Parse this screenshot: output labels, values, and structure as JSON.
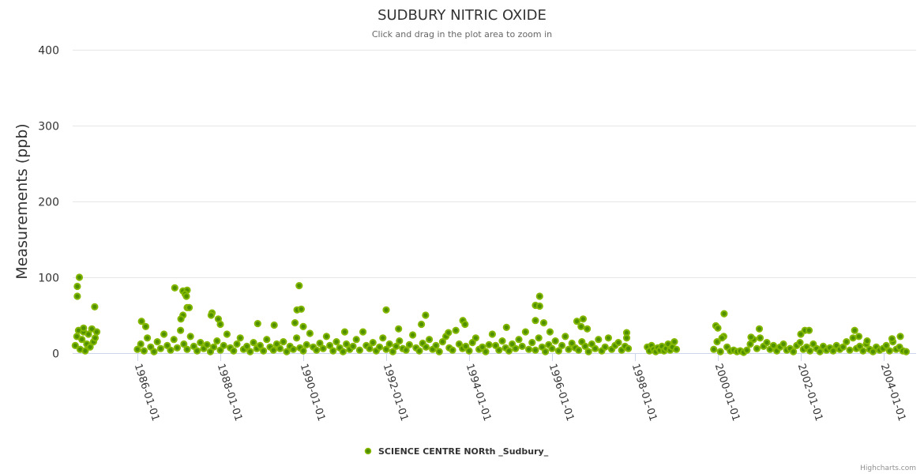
{
  "chart_data": {
    "type": "scatter",
    "title": "SUDBURY NITRIC OXIDE",
    "subtitle": "Click and drag in the plot area to zoom in",
    "xlabel": "",
    "ylabel": "Measurements (ppb)",
    "ylim": [
      0,
      400
    ],
    "xlim": [
      1984.4,
      2004.75
    ],
    "yticks": [
      "0",
      "100",
      "200",
      "300",
      "400"
    ],
    "xticks": [
      {
        "year": 1986,
        "label": "1986-01-01"
      },
      {
        "year": 1988,
        "label": "1988-01-01"
      },
      {
        "year": 1990,
        "label": "1990-01-01"
      },
      {
        "year": 1992,
        "label": "1992-01-01"
      },
      {
        "year": 1994,
        "label": "1994-01-01"
      },
      {
        "year": 1996,
        "label": "1996-01-01"
      },
      {
        "year": 1998,
        "label": "1998-01-01"
      },
      {
        "year": 2000,
        "label": "2000-01-01"
      },
      {
        "year": 2002,
        "label": "2002-01-01"
      },
      {
        "year": 2004,
        "label": "2004-01-01"
      }
    ],
    "grid": true,
    "legend_position": "bottom-center",
    "series": [
      {
        "name": "SCIENCE CENTRE NORth _Sudbury_",
        "color": "#7cb200",
        "segments": [
          {
            "start": 1984.5,
            "step": 0.04,
            "values": [
              10,
              22,
              30,
              5,
              18,
              28,
              3,
              12,
              25,
              8,
              32,
              15,
              20,
              28
            ]
          },
          {
            "start": 1986.0,
            "step": 0.08,
            "values": [
              5,
              12,
              3,
              20,
              8,
              2,
              15,
              6,
              25,
              10,
              4,
              18,
              7,
              30,
              12,
              5,
              22,
              9,
              3,
              14,
              6,
              11,
              2,
              8,
              16,
              4,
              10,
              25,
              7,
              3,
              12,
              20,
              5,
              9,
              2,
              14,
              6,
              10,
              3,
              18,
              8,
              4,
              12,
              6,
              15,
              2,
              9,
              5,
              20,
              7,
              3,
              11,
              26,
              8,
              4,
              13,
              6,
              22,
              10,
              3,
              15,
              7,
              2,
              12,
              5,
              9,
              18,
              4,
              28,
              10,
              6,
              14,
              3,
              8,
              20,
              5,
              12,
              2,
              9,
              16,
              6,
              4,
              11,
              24,
              7,
              3,
              13,
              8,
              18,
              5,
              10,
              2,
              15,
              22,
              7,
              4,
              30,
              12,
              6,
              9,
              3,
              14,
              20,
              5,
              8,
              2,
              11,
              25,
              10,
              4,
              16,
              7,
              3,
              12,
              6,
              18,
              9,
              28,
              5,
              14,
              4,
              20,
              8,
              2,
              11,
              6,
              16,
              3,
              10,
              22,
              5,
              13,
              7,
              4,
              15,
              9,
              2,
              12,
              6,
              18,
              3,
              8,
              20,
              5,
              10,
              14,
              4,
              9,
              6
            ]
          },
          {
            "start": 1998.3,
            "step": 0.05,
            "values": [
              8,
              3,
              10,
              5,
              2,
              7,
              4,
              9,
              3,
              6,
              12,
              4,
              8,
              15,
              5
            ]
          },
          {
            "start": 1999.9,
            "step": 0.08,
            "values": [
              5,
              15,
              2,
              22,
              8,
              3,
              4,
              2,
              3,
              1,
              4,
              12,
              18,
              6,
              20,
              9,
              14,
              5,
              10,
              3,
              8,
              12,
              4,
              6,
              2,
              10,
              14,
              5,
              8,
              3,
              12,
              6,
              2,
              9,
              4,
              7,
              3,
              10,
              5,
              8,
              15,
              4,
              20,
              6,
              9,
              3,
              12,
              5,
              2,
              8,
              4,
              6,
              10,
              3,
              15,
              5,
              8,
              3,
              2
            ]
          }
        ],
        "extra_points": [
          [
            1984.6,
            100
          ],
          [
            1984.55,
            88
          ],
          [
            1984.55,
            75
          ],
          [
            1984.97,
            61
          ],
          [
            1984.7,
            33
          ],
          [
            1986.1,
            42
          ],
          [
            1986.2,
            35
          ],
          [
            1986.9,
            86
          ],
          [
            1987.1,
            82
          ],
          [
            1987.2,
            83
          ],
          [
            1987.15,
            78
          ],
          [
            1987.18,
            75
          ],
          [
            1987.2,
            60
          ],
          [
            1987.25,
            60
          ],
          [
            1987.1,
            50
          ],
          [
            1987.05,
            45
          ],
          [
            1987.8,
            53
          ],
          [
            1987.78,
            50
          ],
          [
            1987.95,
            45
          ],
          [
            1988.0,
            38
          ],
          [
            1988.9,
            39
          ],
          [
            1989.3,
            37
          ],
          [
            1989.85,
            57
          ],
          [
            1989.95,
            58
          ],
          [
            1989.9,
            89
          ],
          [
            1989.8,
            40
          ],
          [
            1990.0,
            35
          ],
          [
            1991.0,
            28
          ],
          [
            1992.0,
            57
          ],
          [
            1992.3,
            32
          ],
          [
            1992.85,
            38
          ],
          [
            1992.95,
            50
          ],
          [
            1993.5,
            27
          ],
          [
            1993.85,
            43
          ],
          [
            1993.9,
            38
          ],
          [
            1994.9,
            34
          ],
          [
            1995.6,
            63
          ],
          [
            1995.7,
            62
          ],
          [
            1995.7,
            75
          ],
          [
            1995.6,
            43
          ],
          [
            1995.8,
            40
          ],
          [
            1995.95,
            28
          ],
          [
            1996.6,
            42
          ],
          [
            1996.75,
            45
          ],
          [
            1996.7,
            35
          ],
          [
            1996.85,
            32
          ],
          [
            1997.8,
            27
          ],
          [
            1997.8,
            20
          ],
          [
            1999.95,
            36
          ],
          [
            2000.0,
            33
          ],
          [
            2000.15,
            52
          ],
          [
            2000.1,
            20
          ],
          [
            2000.8,
            21
          ],
          [
            2001.0,
            32
          ],
          [
            2002.1,
            30
          ],
          [
            2002.2,
            30
          ],
          [
            2002.0,
            25
          ],
          [
            2003.3,
            30
          ],
          [
            2003.4,
            22
          ],
          [
            2003.6,
            16
          ],
          [
            2004.2,
            19
          ],
          [
            2004.4,
            22
          ]
        ]
      }
    ],
    "credits": "Highcharts.com"
  }
}
